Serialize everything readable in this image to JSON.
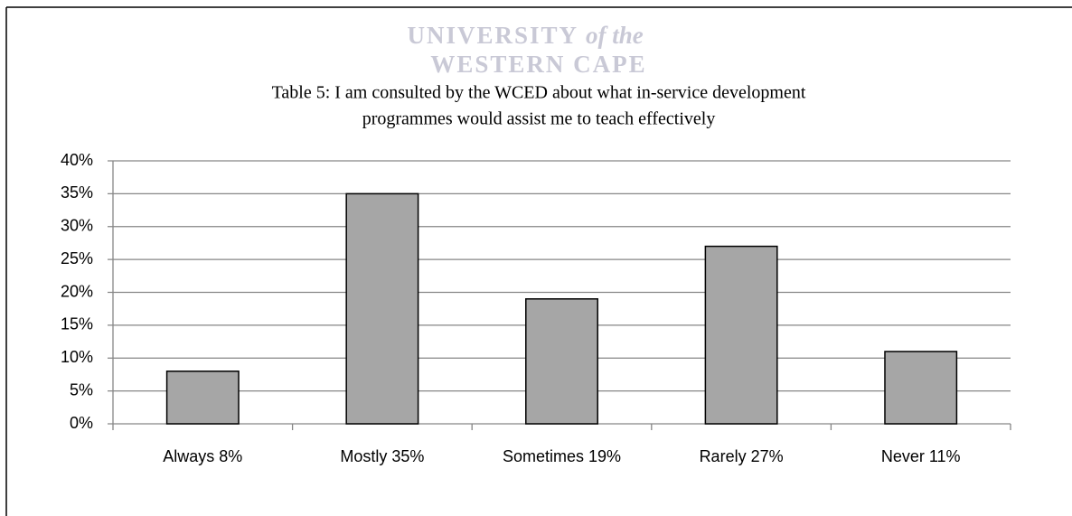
{
  "chart_data": {
    "type": "bar",
    "watermark": [
      "UNIVERSITY",
      "of the",
      "WESTERN CAPE"
    ],
    "title": [
      "Table 5: I am consulted by the WCED about what in-service development",
      "programmes would assist me to teach effectively"
    ],
    "categories": [
      "Always 8%",
      "Mostly 35%",
      "Sometimes 19%",
      "Rarely 27%",
      "Never 11%"
    ],
    "values": [
      8,
      35,
      19,
      27,
      11
    ],
    "color": "#a6a6a6",
    "ylim": [
      0,
      40
    ],
    "yticks": [
      {
        "value": 0,
        "label": "0%"
      },
      {
        "value": 5,
        "label": "5%"
      },
      {
        "value": 10,
        "label": "10%"
      },
      {
        "value": 15,
        "label": "15%"
      },
      {
        "value": 20,
        "label": "20%"
      },
      {
        "value": 25,
        "label": "25%"
      },
      {
        "value": 30,
        "label": "30%"
      },
      {
        "value": 35,
        "label": "35%"
      },
      {
        "value": 40,
        "label": "40%"
      }
    ],
    "grid": true
  }
}
